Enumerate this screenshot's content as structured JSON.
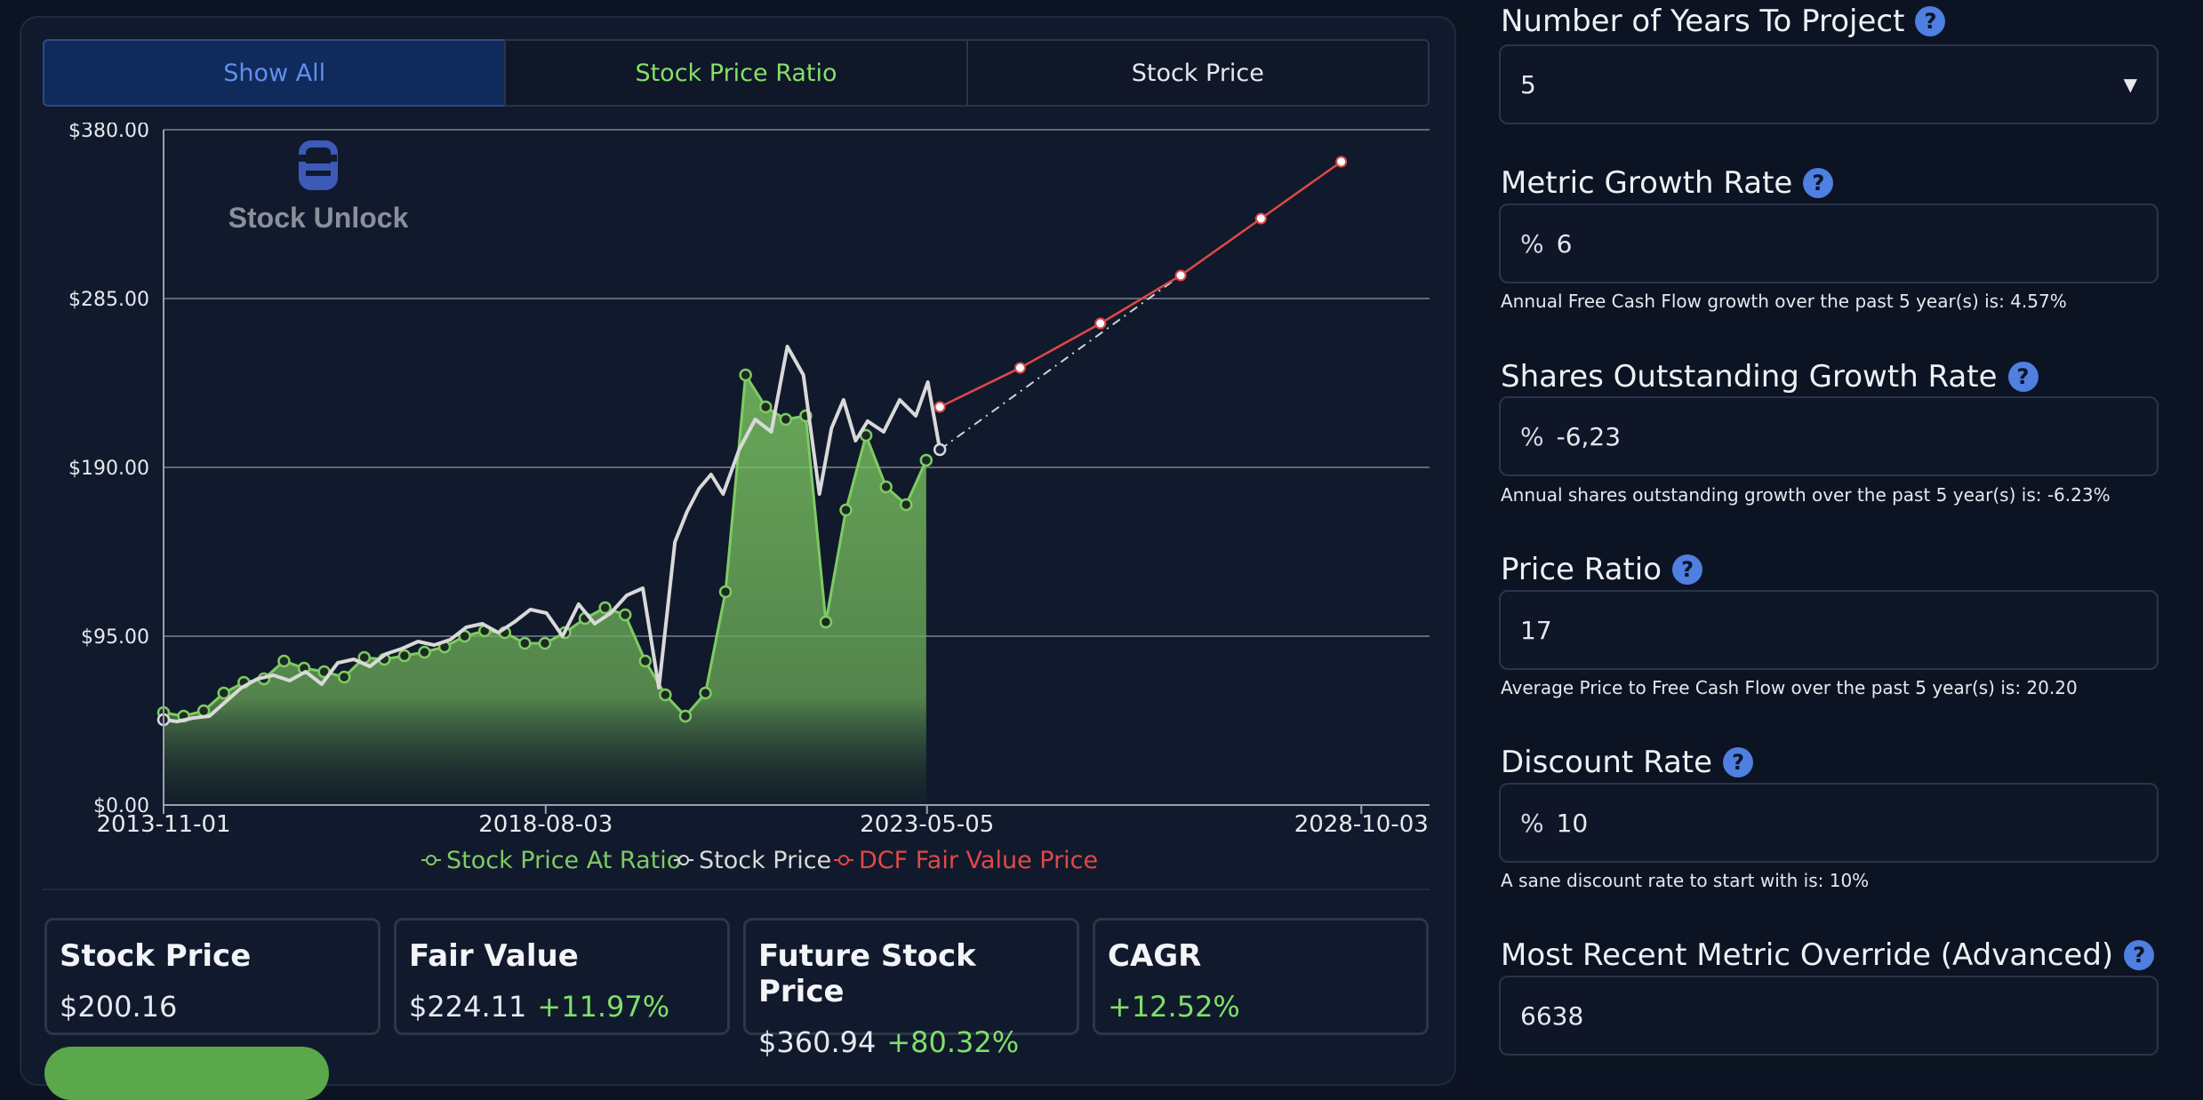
{
  "tabs": [
    "Show All",
    "Stock Price Ratio",
    "Stock Price"
  ],
  "watermark": "Stock Unlock",
  "legend": [
    "Stock Price At Ratio",
    "Stock Price",
    "DCF Fair Value Price"
  ],
  "colors": {
    "ratio": "#7ecb63",
    "price": "#d9d9d9",
    "dcf": "#e04848",
    "accent": "#5f8ff0"
  },
  "chart_data": {
    "type": "line",
    "ylim": [
      0,
      380
    ],
    "y_ticks": [
      "$0.00",
      "$95.00",
      "$190.00",
      "$285.00",
      "$380.00"
    ],
    "y_tick_values": [
      0,
      95,
      190,
      285,
      380
    ],
    "x_ticks": [
      "2013-11-01",
      "2018-08-03",
      "2023-05-05",
      "2028-10-03"
    ],
    "xlim": [
      2013.83,
      2029.6
    ],
    "x_tick_values": [
      2013.83,
      2018.59,
      2023.34,
      2028.75
    ],
    "series": [
      {
        "name": "Stock Price At Ratio",
        "color": "#7ecb63",
        "area": true,
        "x": [
          2013.83,
          2014.08,
          2014.33,
          2014.58,
          2014.83,
          2015.08,
          2015.33,
          2015.58,
          2015.83,
          2016.08,
          2016.33,
          2016.58,
          2016.83,
          2017.08,
          2017.33,
          2017.58,
          2017.83,
          2018.08,
          2018.33,
          2018.58,
          2018.83,
          2019.08,
          2019.33,
          2019.58,
          2019.83,
          2020.08,
          2020.33,
          2020.58,
          2020.83,
          2021.08,
          2021.33,
          2021.58,
          2021.83,
          2022.08,
          2022.33,
          2022.58,
          2022.83,
          2023.08,
          2023.33
        ],
        "y": [
          52,
          50,
          53,
          63,
          69,
          71,
          81,
          77,
          75,
          72,
          83,
          82,
          84,
          86,
          89,
          95,
          98,
          97,
          91,
          91,
          97,
          105,
          111,
          107,
          81,
          62,
          50,
          63,
          120,
          242,
          224,
          217,
          219,
          103,
          166,
          208,
          179,
          169,
          194
        ]
      },
      {
        "name": "Stock Price",
        "color": "#d9d9d9",
        "x": [
          2013.83,
          2014.0,
          2014.2,
          2014.4,
          2014.6,
          2014.8,
          2015.0,
          2015.2,
          2015.4,
          2015.6,
          2015.8,
          2016.0,
          2016.2,
          2016.4,
          2016.6,
          2016.8,
          2017.0,
          2017.2,
          2017.4,
          2017.6,
          2017.8,
          2018.0,
          2018.2,
          2018.4,
          2018.6,
          2018.8,
          2019.0,
          2019.2,
          2019.4,
          2019.6,
          2019.8,
          2020.0,
          2020.2,
          2020.35,
          2020.5,
          2020.65,
          2020.8,
          2021.0,
          2021.2,
          2021.4,
          2021.6,
          2021.8,
          2022.0,
          2022.15,
          2022.3,
          2022.45,
          2022.6,
          2022.8,
          2023.0,
          2023.2,
          2023.35,
          2023.5
        ],
        "y": [
          48,
          47,
          49,
          50,
          58,
          66,
          71,
          73,
          70,
          75,
          68,
          80,
          82,
          78,
          85,
          88,
          92,
          90,
          93,
          100,
          102,
          97,
          103,
          110,
          108,
          95,
          113,
          102,
          108,
          118,
          122,
          66,
          148,
          165,
          178,
          186,
          175,
          200,
          217,
          210,
          258,
          242,
          175,
          212,
          228,
          205,
          216,
          210,
          228,
          219,
          238,
          200
        ],
        "dots_at": [
          2013.83,
          2023.5
        ]
      },
      {
        "name": "DCF Fair Value Price",
        "color": "#e04848",
        "x": [
          2023.5,
          2024.5,
          2025.5,
          2026.5,
          2027.5,
          2028.5
        ],
        "y": [
          224,
          246,
          271,
          298,
          330,
          362
        ]
      }
    ],
    "projection_line": {
      "x": [
        2023.5,
        2026.5
      ],
      "y": [
        200,
        298
      ],
      "color": "#cfd3da",
      "dashed": true
    }
  },
  "stats": [
    {
      "title": "Stock Price",
      "value": "$200.16",
      "change": ""
    },
    {
      "title": "Fair Value",
      "value": "$224.11",
      "change": "+11.97%"
    },
    {
      "title": "Future Stock Price",
      "value": "$360.94",
      "change": "+80.32%"
    },
    {
      "title": "CAGR",
      "value": "",
      "change": "+12.52%"
    }
  ],
  "form": {
    "years": {
      "label": "Number of Years To Project",
      "value": "5"
    },
    "metric_growth": {
      "label": "Metric Growth Rate",
      "prefix": "%",
      "value": "6",
      "hint": "Annual Free Cash Flow growth over the past 5 year(s) is: 4.57%"
    },
    "shares_growth": {
      "label": "Shares Outstanding Growth Rate",
      "prefix": "%",
      "value": "-6,23",
      "hint": "Annual shares outstanding growth over the past 5 year(s) is: -6.23%"
    },
    "price_ratio": {
      "label": "Price Ratio",
      "value": "17",
      "hint": "Average Price to Free Cash Flow over the past 5 year(s) is: 20.20"
    },
    "discount_rate": {
      "label": "Discount Rate",
      "prefix": "%",
      "value": "10",
      "hint": "A sane discount rate to start with is: 10%"
    },
    "override": {
      "label": "Most Recent Metric Override (Advanced)",
      "value": "6638"
    }
  }
}
